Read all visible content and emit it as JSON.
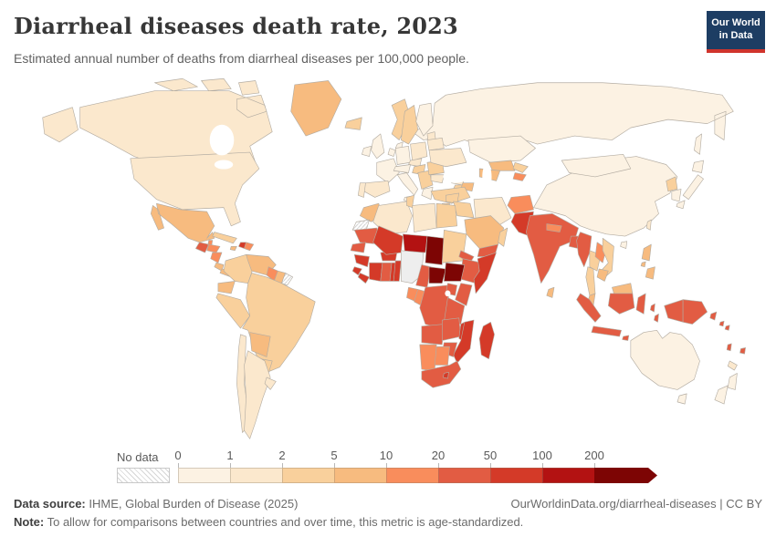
{
  "header": {
    "title": "Diarrheal diseases death rate, 2023",
    "subtitle": "Estimated annual number of deaths from diarrheal diseases per 100,000 people.",
    "logo_line1": "Our World",
    "logo_line2": "in Data",
    "logo_bg": "#1d3d63",
    "logo_stripe": "#d0342c"
  },
  "legend": {
    "no_data_label": "No data",
    "seg_width": 57,
    "arrow_extra": 12
  },
  "footer": {
    "source_label": "Data source:",
    "source_text": " IHME, Global Burden of Disease (2025)",
    "link_text": "OurWorldinData.org/diarrheal-diseases | CC BY",
    "note_label": "Note:",
    "note_text": " To allow for comparisons between countries and over time, this metric is age-standardized."
  },
  "chart_data": {
    "type": "choropleth-map",
    "title": "Diarrheal diseases death rate, 2023",
    "unit": "deaths per 100,000 people (age-standardized)",
    "year": 2023,
    "projection": "world",
    "bin_edges": [
      0,
      1,
      2,
      5,
      10,
      20,
      50,
      100,
      200
    ],
    "bins": [
      {
        "tick": "0",
        "range": "0-1",
        "color": "#FCF2E3"
      },
      {
        "tick": "1",
        "range": "1-2",
        "color": "#FBE8CD"
      },
      {
        "tick": "2",
        "range": "2-5",
        "color": "#F9D09C"
      },
      {
        "tick": "5",
        "range": "5-10",
        "color": "#F7BB7F"
      },
      {
        "tick": "10",
        "range": "10-20",
        "color": "#F98D5C"
      },
      {
        "tick": "20",
        "range": "20-50",
        "color": "#E25C43"
      },
      {
        "tick": "50",
        "range": "50-100",
        "color": "#D43A28"
      },
      {
        "tick": "100",
        "range": "100-200",
        "color": "#B31212"
      },
      {
        "tick": "200",
        "range": ">200",
        "color": "#7D0504"
      }
    ],
    "no_data_color": "hatched",
    "regions": {
      "canada": 2,
      "greenland": 4,
      "usa": 2,
      "iceland": 3,
      "mexico": 4,
      "guatemala": 6,
      "belize": 5,
      "honduras": 5,
      "nicaragua": 5,
      "costarica": 4,
      "panama": 4,
      "cuba": 3,
      "jamaica": 4,
      "haiti": 7,
      "domrep": 5,
      "colombia": 3,
      "venezuela": 4,
      "guyana": 5,
      "suriname": 4,
      "frguiana": 0,
      "ecuador": 4,
      "peru": 3,
      "brazil": 3,
      "bolivia": 4,
      "paraguay": 3,
      "chile": 2,
      "argentina": 2,
      "uruguay": 2,
      "uk": 1,
      "ireland": 1,
      "norway": 3,
      "sweden": 3,
      "finland": 1,
      "denmark": 1,
      "baltics": 2,
      "france": 1,
      "spain": 2,
      "portugal": 2,
      "germany": 1,
      "benelux": 1,
      "poland": 2,
      "czech": 2,
      "austria": 1,
      "hungary": 3,
      "italy": 1,
      "balkans": 3,
      "greece": 1,
      "romania": 3,
      "bulgaria": 2,
      "ukraine": 2,
      "belarus": 2,
      "russia": 1,
      "kazakhstan": 1,
      "uzbekistan": 4,
      "turkmenistan": 4,
      "kyrgyzstan": 3,
      "tajikistan": 5,
      "georgia": 2,
      "armenia": 3,
      "azerbaijan": 4,
      "turkey": 3,
      "syria": 3,
      "iraq": 3,
      "iran": 2,
      "levant": 3,
      "saudi": 4,
      "yemen": 6,
      "oman": 3,
      "afghanistan": 5,
      "pakistan": 7,
      "india": 6,
      "nepal": 5,
      "bangladesh": 6,
      "srilanka": 4,
      "myanmar": 6,
      "thailand": 3,
      "laos": 5,
      "vietnam": 3,
      "cambodia": 4,
      "malaysia": 4,
      "indonesia": 6,
      "timor": 6,
      "philippines": 4,
      "png": 6,
      "solomon": 6,
      "vanuatu": 6,
      "fiji": 6,
      "newcaledonia": 2,
      "china": 1,
      "mongolia": 1,
      "nkorea": 3,
      "skorea": 1,
      "japan": 1,
      "taiwan": 2,
      "australia": 1,
      "nz": 1,
      "morocco": 4,
      "wsahara": 0,
      "algeria": 2,
      "tunisia": 3,
      "libya": 2,
      "egypt": 3,
      "mauritania": 6,
      "senegal": 6,
      "guinea": 7,
      "sierraleone": 7,
      "liberia": 7,
      "ivorycoast": 7,
      "ghana": 6,
      "togo": 7,
      "benin": 7,
      "burkina": 7,
      "mali": 7,
      "niger": 8,
      "chad": 9,
      "sudan": 3,
      "eritrea": 6,
      "djibouti": 6,
      "ethiopia": 6,
      "somalia": 7,
      "ssudan": 9,
      "car": 9,
      "cameroon": 6,
      "gabon": 5,
      "congo": 5,
      "drc": 6,
      "uganda": 6,
      "kenya": 6,
      "tanzania": 6,
      "angola": 6,
      "zambia": 6,
      "malawi": 7,
      "mozambique": 7,
      "zimbabwe": 6,
      "namibia": 5,
      "botswana": 5,
      "southafrica": 6,
      "lesotho": 7,
      "madagascar": 7
    }
  }
}
